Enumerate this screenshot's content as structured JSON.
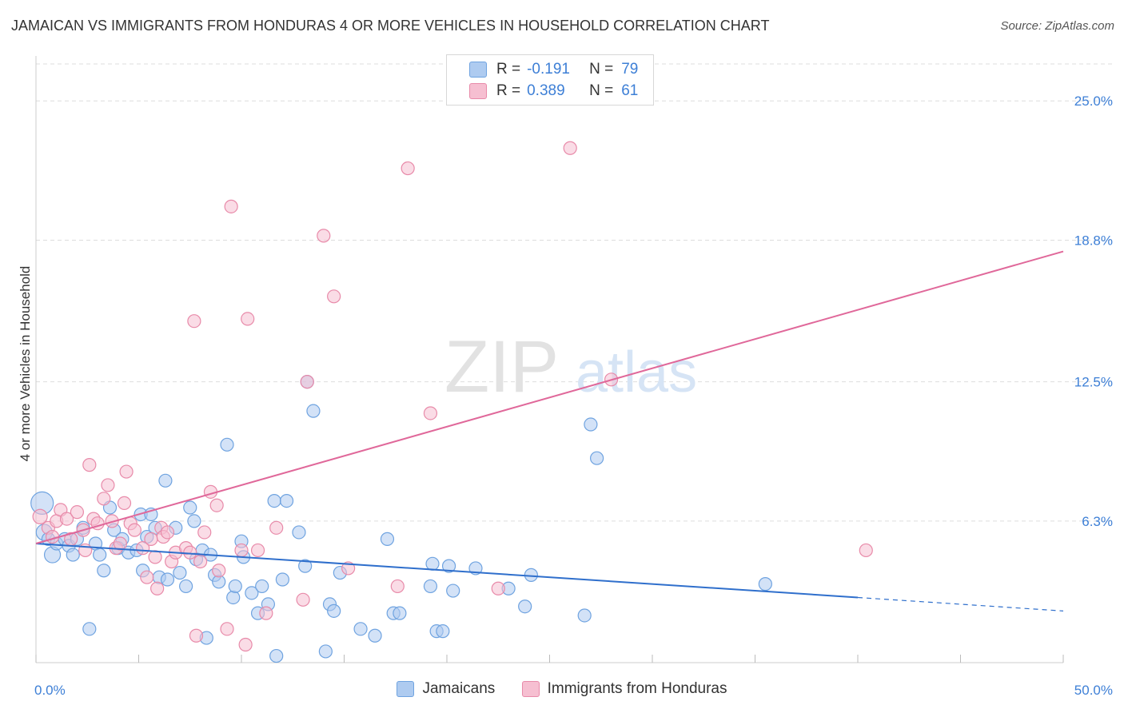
{
  "title": "JAMAICAN VS IMMIGRANTS FROM HONDURAS 4 OR MORE VEHICLES IN HOUSEHOLD CORRELATION CHART",
  "source": "Source: ZipAtlas.com",
  "legend": {
    "r_label": "R =",
    "n_label": "N =",
    "blue": {
      "r": "-0.191",
      "n": "79"
    },
    "pink": {
      "r": "0.389",
      "n": "61"
    }
  },
  "watermark": {
    "zip": "ZIP",
    "atlas": "atlas"
  },
  "colors": {
    "blue_fill": "#aecbf0",
    "blue_stroke": "#6fa3e0",
    "blue_line": "#2f6fcc",
    "pink_fill": "#f6bfd1",
    "pink_stroke": "#e88aa9",
    "pink_line": "#e0689a",
    "tick_label": "#3d7fd6",
    "grid": "#dddddd"
  },
  "chart_data": {
    "type": "scatter",
    "title": "JAMAICAN VS IMMIGRANTS FROM HONDURAS 4 OR MORE VEHICLES IN HOUSEHOLD CORRELATION CHART",
    "xlabel": "",
    "ylabel": "4 or more Vehicles in Household",
    "xlim": [
      0,
      50
    ],
    "ylim": [
      0,
      27
    ],
    "x_tick_labels": [
      "0.0%",
      "50.0%"
    ],
    "y_ticks": [
      6.3,
      12.5,
      18.8,
      25.0
    ],
    "y_tick_labels": [
      "6.3%",
      "12.5%",
      "18.8%",
      "25.0%"
    ],
    "grid": "horizontal dashed",
    "legend_position": "top-center and bottom",
    "series": [
      {
        "name": "Jamaicans",
        "r": -0.191,
        "n": 79,
        "trend": {
          "x0": 0,
          "y0": 5.3,
          "x1": 40,
          "y1": 2.9,
          "dashed_to_x": 50,
          "dashed_to_y": 2.3
        },
        "points": [
          [
            0.3,
            7.1,
            14
          ],
          [
            0.4,
            5.8,
            10
          ],
          [
            0.6,
            5.5,
            8
          ],
          [
            0.8,
            4.8,
            10
          ],
          [
            1.0,
            5.3,
            8
          ],
          [
            1.4,
            5.5,
            8
          ],
          [
            1.6,
            5.2,
            8
          ],
          [
            1.8,
            4.8,
            8
          ],
          [
            2.0,
            5.5,
            8
          ],
          [
            2.3,
            6.0,
            8
          ],
          [
            2.6,
            1.5,
            8
          ],
          [
            2.9,
            5.3,
            8
          ],
          [
            3.1,
            4.8,
            8
          ],
          [
            3.3,
            4.1,
            8
          ],
          [
            3.6,
            6.9,
            8
          ],
          [
            3.8,
            5.9,
            8
          ],
          [
            4.0,
            5.1,
            8
          ],
          [
            4.2,
            5.5,
            8
          ],
          [
            4.5,
            4.9,
            8
          ],
          [
            4.9,
            5.0,
            8
          ],
          [
            5.1,
            6.6,
            8
          ],
          [
            5.2,
            4.1,
            8
          ],
          [
            5.4,
            5.6,
            8
          ],
          [
            5.6,
            6.6,
            8
          ],
          [
            5.8,
            6.0,
            8
          ],
          [
            6.0,
            3.8,
            8
          ],
          [
            6.3,
            8.1,
            8
          ],
          [
            6.4,
            3.7,
            8
          ],
          [
            6.8,
            6.0,
            8
          ],
          [
            7.0,
            4.0,
            8
          ],
          [
            7.3,
            3.4,
            8
          ],
          [
            7.5,
            6.9,
            8
          ],
          [
            7.7,
            6.3,
            8
          ],
          [
            7.8,
            4.6,
            8
          ],
          [
            8.1,
            5.0,
            8
          ],
          [
            8.3,
            1.1,
            8
          ],
          [
            8.5,
            4.8,
            8
          ],
          [
            8.7,
            3.9,
            8
          ],
          [
            8.9,
            3.6,
            8
          ],
          [
            9.3,
            9.7,
            8
          ],
          [
            9.6,
            2.9,
            8
          ],
          [
            9.7,
            3.4,
            8
          ],
          [
            10.0,
            5.4,
            8
          ],
          [
            10.1,
            4.7,
            8
          ],
          [
            10.5,
            3.1,
            8
          ],
          [
            10.8,
            2.2,
            8
          ],
          [
            11.0,
            3.4,
            8
          ],
          [
            11.3,
            2.6,
            8
          ],
          [
            11.6,
            7.2,
            8
          ],
          [
            11.7,
            0.3,
            8
          ],
          [
            12.0,
            3.7,
            8
          ],
          [
            12.2,
            7.2,
            8
          ],
          [
            12.8,
            5.8,
            8
          ],
          [
            13.1,
            4.3,
            8
          ],
          [
            13.2,
            12.5,
            8
          ],
          [
            13.5,
            11.2,
            8
          ],
          [
            14.1,
            0.5,
            8
          ],
          [
            14.3,
            2.6,
            8
          ],
          [
            14.5,
            2.3,
            8
          ],
          [
            14.8,
            4.0,
            8
          ],
          [
            15.8,
            1.5,
            8
          ],
          [
            16.5,
            1.2,
            8
          ],
          [
            17.1,
            5.5,
            8
          ],
          [
            17.4,
            2.2,
            8
          ],
          [
            17.7,
            2.2,
            8
          ],
          [
            19.2,
            3.4,
            8
          ],
          [
            19.3,
            4.4,
            8
          ],
          [
            19.5,
            1.4,
            8
          ],
          [
            19.8,
            1.4,
            8
          ],
          [
            20.1,
            4.3,
            8
          ],
          [
            20.3,
            3.2,
            8
          ],
          [
            21.4,
            4.2,
            8
          ],
          [
            23.0,
            3.3,
            8
          ],
          [
            23.8,
            2.5,
            8
          ],
          [
            24.1,
            3.9,
            8
          ],
          [
            26.7,
            2.1,
            8
          ],
          [
            27.0,
            10.6,
            8
          ],
          [
            27.3,
            9.1,
            8
          ],
          [
            35.5,
            3.5,
            8
          ]
        ]
      },
      {
        "name": "Immigrants from Honduras",
        "r": 0.389,
        "n": 61,
        "trend": {
          "x0": 0,
          "y0": 5.3,
          "x1": 50,
          "y1": 18.3
        },
        "points": [
          [
            0.2,
            6.5,
            9
          ],
          [
            0.6,
            6.0,
            8
          ],
          [
            0.8,
            5.6,
            8
          ],
          [
            1.0,
            6.3,
            8
          ],
          [
            1.2,
            6.8,
            8
          ],
          [
            1.5,
            6.4,
            8
          ],
          [
            1.7,
            5.5,
            8
          ],
          [
            2.0,
            6.7,
            8
          ],
          [
            2.3,
            5.9,
            8
          ],
          [
            2.4,
            5.0,
            8
          ],
          [
            2.6,
            8.8,
            8
          ],
          [
            2.8,
            6.4,
            8
          ],
          [
            3.0,
            6.2,
            8
          ],
          [
            3.3,
            7.3,
            8
          ],
          [
            3.5,
            7.9,
            8
          ],
          [
            3.7,
            6.3,
            8
          ],
          [
            3.9,
            5.1,
            8
          ],
          [
            4.1,
            5.3,
            8
          ],
          [
            4.3,
            7.1,
            8
          ],
          [
            4.4,
            8.5,
            8
          ],
          [
            4.6,
            6.2,
            8
          ],
          [
            4.8,
            5.9,
            8
          ],
          [
            5.2,
            5.1,
            8
          ],
          [
            5.4,
            3.8,
            8
          ],
          [
            5.6,
            5.5,
            8
          ],
          [
            5.8,
            4.7,
            8
          ],
          [
            5.9,
            3.3,
            8
          ],
          [
            6.1,
            6.0,
            8
          ],
          [
            6.2,
            5.6,
            8
          ],
          [
            6.4,
            5.8,
            8
          ],
          [
            6.6,
            4.5,
            8
          ],
          [
            6.8,
            4.9,
            8
          ],
          [
            7.3,
            5.1,
            8
          ],
          [
            7.5,
            4.9,
            8
          ],
          [
            7.7,
            15.2,
            8
          ],
          [
            7.8,
            1.2,
            8
          ],
          [
            8.0,
            4.5,
            8
          ],
          [
            8.2,
            5.8,
            8
          ],
          [
            8.5,
            7.6,
            8
          ],
          [
            8.8,
            7.0,
            8
          ],
          [
            8.9,
            4.1,
            8
          ],
          [
            9.3,
            1.5,
            8
          ],
          [
            9.5,
            20.3,
            8
          ],
          [
            10.0,
            5.0,
            8
          ],
          [
            10.3,
            15.3,
            8
          ],
          [
            10.8,
            5.0,
            8
          ],
          [
            11.2,
            2.2,
            8
          ],
          [
            11.7,
            6.0,
            8
          ],
          [
            13.0,
            2.8,
            8
          ],
          [
            13.2,
            12.5,
            8
          ],
          [
            14.0,
            19.0,
            8
          ],
          [
            14.5,
            16.3,
            8
          ],
          [
            15.2,
            4.2,
            8
          ],
          [
            17.6,
            3.4,
            8
          ],
          [
            18.1,
            22.0,
            8
          ],
          [
            19.2,
            11.1,
            8
          ],
          [
            22.5,
            3.3,
            8
          ],
          [
            26.0,
            22.9,
            8
          ],
          [
            28.0,
            12.6,
            8
          ],
          [
            40.4,
            5.0,
            8
          ],
          [
            10.2,
            0.8,
            8
          ]
        ]
      }
    ]
  }
}
